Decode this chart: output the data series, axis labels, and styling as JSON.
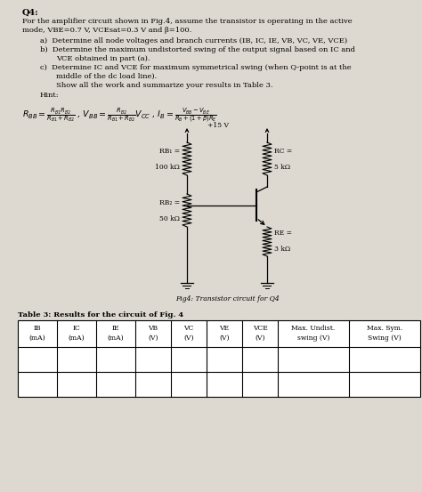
{
  "bg_color": "#ddd9d0",
  "title": "Q4:",
  "fs_title": 7.0,
  "fs_body": 6.0,
  "fs_small": 5.5,
  "fs_formula": 6.5,
  "vcc_label": "+15 V",
  "rb1_label": "RB₁ =",
  "rb1_val": "100 kΩ",
  "rb2_label": "RB₂ =",
  "rb2_val": "50 kΩ",
  "rc_label": "RC =",
  "rc_val": "5 kΩ",
  "re_label": "RE =",
  "re_val": "3 kΩ",
  "fig_caption": "Fig4: Transistor circuit for Q4",
  "table_title": "Table 3: Results for the circuit of Fig. 4",
  "col_headers_line1": [
    "IB",
    "IC",
    "IE",
    "VB",
    "VC",
    "VE",
    "VCE",
    "Max. Undist.",
    "Max. Sym."
  ],
  "col_headers_line2": [
    "(mA)",
    "(mA)",
    "(mA)",
    "(V)",
    "(V)",
    "(V)",
    "(V)",
    "swing (V)",
    "Swing (V)"
  ]
}
